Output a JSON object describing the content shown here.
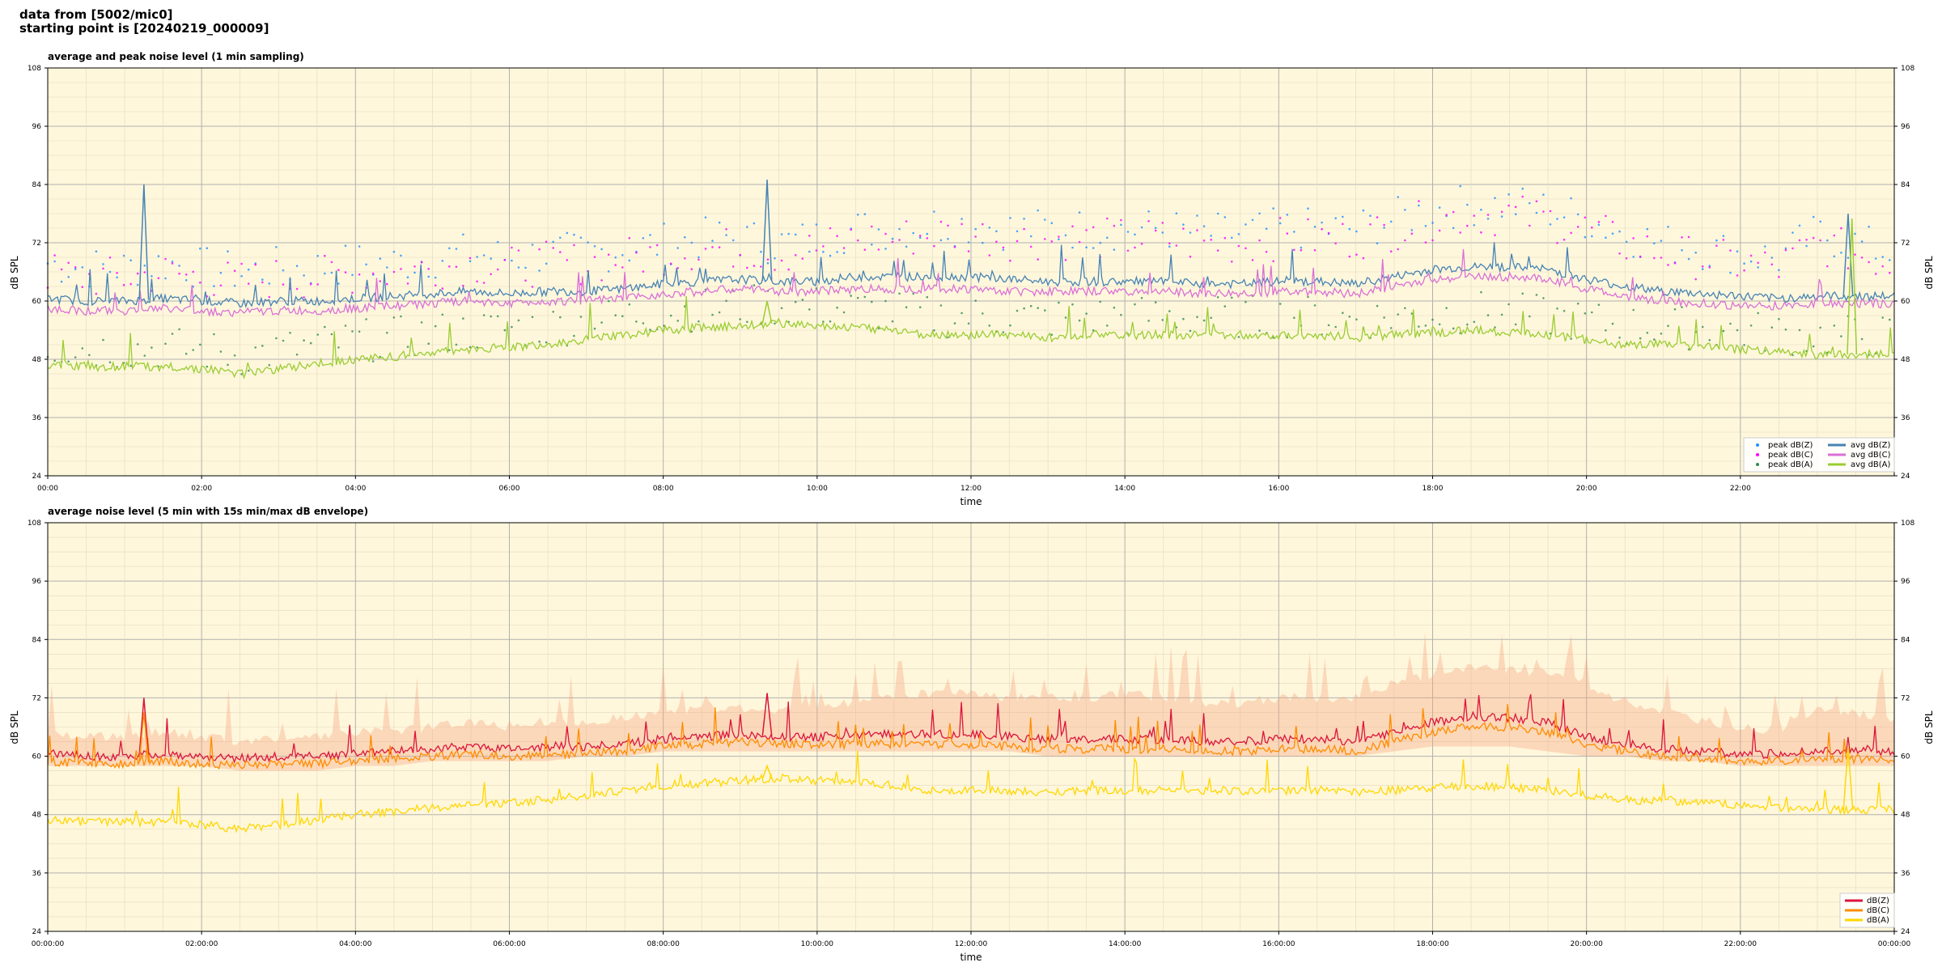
{
  "header": {
    "line1": "data from [5002/mic0]",
    "line2": "starting point is [20240219_000009]"
  },
  "chart_data": [
    {
      "type": "line",
      "title": "average and peak noise level (1 min sampling)",
      "xlabel": "time",
      "ylabel": "dB SPL",
      "ylim": [
        24,
        108
      ],
      "yticks": [
        "24",
        "36",
        "48",
        "60",
        "72",
        "84",
        "96",
        "108"
      ],
      "xlim_hours": [
        0,
        24
      ],
      "xtick_labels": [
        "00:00",
        "02:00",
        "04:00",
        "06:00",
        "08:00",
        "10:00",
        "12:00",
        "14:00",
        "16:00",
        "18:00",
        "20:00",
        "22:00"
      ],
      "grid": true,
      "background": "#fff7dc",
      "legend_location": "lower right",
      "x_hours": [
        0,
        0.5,
        1,
        1.5,
        2,
        2.5,
        3,
        3.5,
        4,
        4.5,
        5,
        5.5,
        6,
        6.5,
        7,
        7.5,
        8,
        8.5,
        9,
        9.5,
        10,
        10.5,
        11,
        11.5,
        12,
        12.5,
        13,
        13.5,
        14,
        14.5,
        15,
        15.5,
        16,
        16.5,
        17,
        17.5,
        18,
        18.5,
        19,
        19.5,
        20,
        20.5,
        21,
        21.5,
        22,
        22.5,
        23,
        23.5,
        24
      ],
      "spikes": [
        {
          "series": "avg dB(Z)",
          "x": 1.25,
          "y": 84
        },
        {
          "series": "avg dB(Z)",
          "x": 9.35,
          "y": 85
        },
        {
          "series": "avg dB(A)",
          "x": 9.35,
          "y": 60
        },
        {
          "series": "avg dB(Z)",
          "x": 23.4,
          "y": 78
        },
        {
          "series": "avg dB(A)",
          "x": 23.45,
          "y": 77
        }
      ],
      "series": [
        {
          "name": "avg dB(Z)",
          "style": "line",
          "color": "#4682b4",
          "values": [
            60.5,
            60,
            60,
            60.5,
            60,
            59.5,
            60,
            60,
            60.5,
            61,
            61.5,
            62,
            61.5,
            62,
            62,
            62.5,
            63.5,
            64,
            64.5,
            64,
            64,
            65,
            65,
            65,
            65,
            64.5,
            64,
            64,
            64,
            64,
            63.5,
            63.5,
            64,
            64,
            63.5,
            65,
            66.5,
            67,
            67,
            66.5,
            64.5,
            63,
            62,
            61.5,
            61,
            60.5,
            61,
            61,
            61
          ]
        },
        {
          "name": "avg dB(C)",
          "style": "line",
          "color": "#da70d6",
          "values": [
            58.5,
            58,
            58,
            58.5,
            58,
            57.5,
            58,
            58,
            58.5,
            59,
            59.5,
            60,
            59.5,
            60,
            60,
            60.5,
            61.5,
            62,
            62.5,
            62,
            62,
            62.5,
            62.5,
            62.5,
            62.5,
            62,
            62,
            62,
            62,
            62,
            61.5,
            61.5,
            62,
            62,
            61.5,
            63,
            64.5,
            65,
            65,
            64.5,
            62.5,
            61,
            60,
            59.5,
            59,
            59,
            59.5,
            59.5,
            59.5
          ]
        },
        {
          "name": "avg dB(A)",
          "style": "line",
          "color": "#9acd32",
          "values": [
            47,
            46.5,
            46.5,
            46.5,
            46,
            45,
            46,
            47,
            48,
            48.5,
            49.5,
            50,
            50.5,
            51,
            52,
            53,
            54,
            54.5,
            55,
            55.5,
            55,
            54.5,
            54,
            53,
            53,
            53,
            52.5,
            53,
            53,
            53,
            53,
            53,
            53,
            53,
            52.5,
            53,
            53.5,
            54,
            53.5,
            53,
            52,
            51,
            51,
            50.5,
            50,
            49.5,
            49,
            49,
            49
          ]
        },
        {
          "name": "peak dB(Z)",
          "style": "dots",
          "color": "#1e90ff",
          "values": [
            66,
            65,
            65,
            66,
            65,
            64,
            65,
            65,
            66,
            66,
            67,
            68,
            67,
            68,
            68,
            69,
            70,
            71,
            71,
            70,
            71,
            73,
            73,
            74,
            74,
            73,
            73,
            73,
            73,
            73,
            72,
            72,
            73,
            73,
            73,
            75,
            77,
            78,
            78,
            77,
            75,
            72,
            70,
            69,
            68,
            67,
            72,
            70,
            68
          ]
        },
        {
          "name": "peak dB(C)",
          "style": "dots",
          "color": "#ff00ff",
          "values": [
            64,
            63,
            63,
            64,
            63,
            62,
            63,
            63,
            64,
            64,
            65,
            66,
            65,
            66,
            66,
            67,
            68,
            69,
            69,
            68,
            69,
            71,
            71,
            72,
            72,
            71,
            71,
            71,
            71,
            71,
            70,
            70,
            71,
            71,
            71,
            73,
            75,
            76,
            76,
            75,
            73,
            70,
            68,
            67,
            66,
            65,
            70,
            68,
            66
          ]
        },
        {
          "name": "peak dB(A)",
          "style": "dots",
          "color": "#2e8b57",
          "values": [
            49,
            48.5,
            48.5,
            48.5,
            48,
            47,
            48,
            49,
            50,
            50.5,
            51.5,
            52,
            52.5,
            53,
            54,
            55,
            56,
            56.5,
            57,
            57.5,
            57,
            56.5,
            56,
            55,
            55,
            55,
            54.5,
            55,
            55,
            55,
            55,
            55,
            55,
            55,
            54.5,
            55,
            55.5,
            56,
            55.5,
            55,
            54,
            53,
            53,
            52.5,
            52,
            51.5,
            51,
            51,
            51
          ]
        }
      ]
    },
    {
      "type": "line",
      "title": "average noise level (5 min with 15s min/max dB envelope)",
      "xlabel": "time",
      "ylabel": "dB SPL",
      "ylim": [
        24,
        108
      ],
      "yticks": [
        "24",
        "36",
        "48",
        "60",
        "72",
        "84",
        "96",
        "108"
      ],
      "xlim_hours": [
        0,
        24
      ],
      "xtick_labels": [
        "00:00:00",
        "02:00:00",
        "04:00:00",
        "06:00:00",
        "08:00:00",
        "10:00:00",
        "12:00:00",
        "14:00:00",
        "16:00:00",
        "18:00:00",
        "20:00:00",
        "22:00:00",
        "00:00:00"
      ],
      "grid": true,
      "background": "#fff7dc",
      "legend_location": "lower right",
      "x_hours": [
        0,
        0.5,
        1,
        1.5,
        2,
        2.5,
        3,
        3.5,
        4,
        4.5,
        5,
        5.5,
        6,
        6.5,
        7,
        7.5,
        8,
        8.5,
        9,
        9.5,
        10,
        10.5,
        11,
        11.5,
        12,
        12.5,
        13,
        13.5,
        14,
        14.5,
        15,
        15.5,
        16,
        16.5,
        17,
        17.5,
        18,
        18.5,
        19,
        19.5,
        20,
        20.5,
        21,
        21.5,
        22,
        22.5,
        23,
        23.5,
        24
      ],
      "spikes": [
        {
          "series": "dB(Z)",
          "x": 1.25,
          "y": 72
        },
        {
          "series": "dB(C)",
          "x": 1.25,
          "y": 69
        },
        {
          "series": "dB(Z)",
          "x": 9.35,
          "y": 73
        },
        {
          "series": "dB(A)",
          "x": 9.35,
          "y": 58
        },
        {
          "series": "dB(A)",
          "x": 23.4,
          "y": 62
        }
      ],
      "envelope": {
        "color": "#f4a582",
        "upper": [
          64,
          63,
          63,
          64,
          63,
          62,
          63,
          63,
          64,
          64,
          65,
          66,
          65,
          66,
          66,
          67,
          68,
          69,
          69,
          68,
          69,
          70,
          71,
          72,
          72,
          71,
          71,
          71,
          72,
          71,
          70,
          70,
          71,
          71,
          71,
          74,
          76,
          77,
          77,
          76,
          74,
          70,
          68,
          66,
          65,
          64,
          69,
          68,
          66
        ],
        "lower": [
          58,
          58,
          58,
          58,
          58,
          57,
          57,
          57,
          58,
          58,
          59,
          59,
          59,
          59,
          60,
          60,
          61,
          61,
          61,
          61,
          61,
          61,
          61,
          61,
          61,
          61,
          60,
          60,
          60,
          60,
          60,
          60,
          60,
          60,
          60,
          61,
          62,
          62,
          62,
          61,
          60,
          60,
          59,
          59,
          58,
          58,
          58,
          58,
          58
        ]
      },
      "series": [
        {
          "name": "dB(Z)",
          "style": "line",
          "color": "#dc143c",
          "values": [
            60.5,
            60,
            60,
            60.5,
            60,
            59.5,
            60,
            60,
            60.5,
            61,
            61.5,
            62,
            61.5,
            62,
            62,
            62.5,
            63.5,
            64,
            64.5,
            64,
            64,
            64.5,
            64.5,
            64.5,
            64.5,
            64,
            63.5,
            63.5,
            63.5,
            63.5,
            63,
            63,
            63.5,
            63.5,
            63,
            65,
            67,
            68,
            68,
            67,
            64,
            62.5,
            61.5,
            61,
            60.5,
            60.5,
            61,
            61,
            61
          ]
        },
        {
          "name": "dB(C)",
          "style": "line",
          "color": "#ff8c00",
          "values": [
            59,
            58.5,
            58.5,
            59,
            58.5,
            58,
            58.5,
            58.5,
            59,
            59.5,
            60,
            60.5,
            60,
            60.5,
            60.5,
            61,
            62,
            62.5,
            63,
            62.5,
            62.5,
            62.5,
            62.5,
            62.5,
            62.5,
            62,
            61.5,
            61.5,
            61.5,
            61.5,
            61,
            61,
            61.5,
            61.5,
            61,
            63,
            65,
            66,
            66,
            65,
            62.5,
            61,
            60,
            59.5,
            59,
            59,
            59.5,
            59.5,
            59.5
          ]
        },
        {
          "name": "dB(A)",
          "style": "line",
          "color": "#ffd700",
          "values": [
            47,
            46.5,
            46.5,
            46.5,
            46,
            45,
            46,
            47,
            48,
            48.5,
            49.5,
            50,
            50.5,
            51,
            52,
            53,
            54,
            54.5,
            55,
            55.5,
            55,
            54.5,
            54,
            53,
            53,
            53,
            52.5,
            53,
            53,
            53,
            53,
            53,
            53,
            53,
            52.5,
            53,
            53.5,
            54,
            53.5,
            53,
            52,
            51,
            51,
            50.5,
            50,
            49.5,
            49,
            49,
            49
          ]
        }
      ]
    }
  ]
}
